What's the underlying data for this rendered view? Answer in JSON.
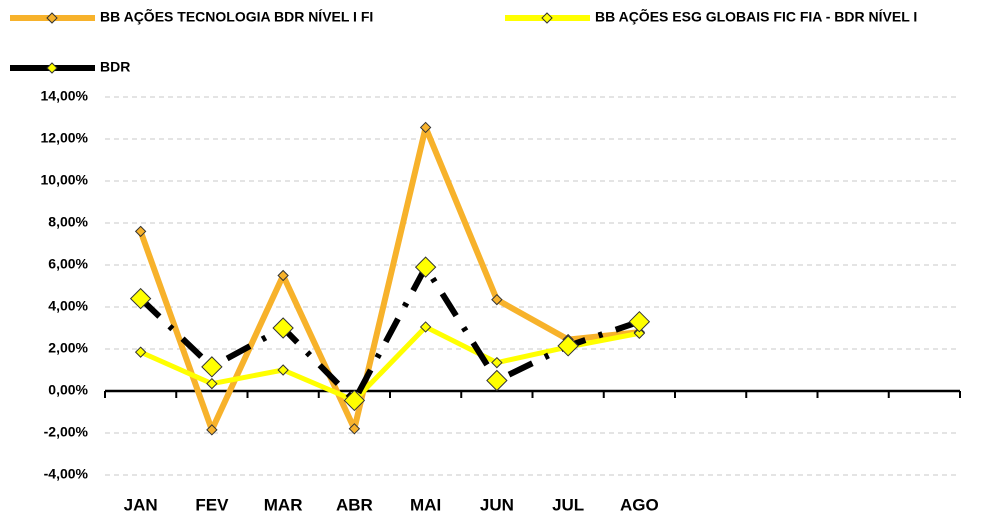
{
  "chart_data": {
    "type": "line",
    "categories": [
      "JAN",
      "FEV",
      "MAR",
      "ABR",
      "MAI",
      "JUN",
      "JUL",
      "AGO",
      null,
      null,
      null,
      null
    ],
    "series": [
      {
        "name": "BB AÇÕES TECNOLOGIA BDR NÍVEL I FI",
        "color": "#F7B22B",
        "marker_color": "#F7B22B",
        "line_style": "solid",
        "values": [
          7.6,
          -1.85,
          5.5,
          -1.8,
          12.55,
          4.35,
          2.45,
          2.8,
          null,
          null,
          null,
          null
        ]
      },
      {
        "name": "BB AÇÕES ESG GLOBAIS FIC FIA - BDR NÍVEL I",
        "color": "#FFFF00",
        "marker_color": "#FFFF00",
        "line_style": "solid",
        "values": [
          1.85,
          0.35,
          1.0,
          -0.45,
          3.05,
          1.35,
          2.1,
          2.75,
          null,
          null,
          null,
          null
        ]
      },
      {
        "name": "BDR",
        "color": "#000000",
        "marker_color": "#FFFF00",
        "line_style": "dashed",
        "values": [
          4.4,
          1.15,
          3.0,
          -0.45,
          5.9,
          0.5,
          2.15,
          3.3,
          null,
          null,
          null,
          null
        ]
      }
    ],
    "ylim": [
      -4,
      14
    ],
    "yticks": [
      {
        "value": -4,
        "label": "-4,00%"
      },
      {
        "value": -2,
        "label": "-2,00%"
      },
      {
        "value": 0,
        "label": "0,00%"
      },
      {
        "value": 2,
        "label": "2,00%"
      },
      {
        "value": 4,
        "label": "4,00%"
      },
      {
        "value": 6,
        "label": "6,00%"
      },
      {
        "value": 8,
        "label": "8,00%"
      },
      {
        "value": 10,
        "label": "10,00%"
      },
      {
        "value": 12,
        "label": "12,00%"
      },
      {
        "value": 14,
        "label": "14,00%"
      }
    ],
    "grid": true,
    "legend": "top"
  }
}
